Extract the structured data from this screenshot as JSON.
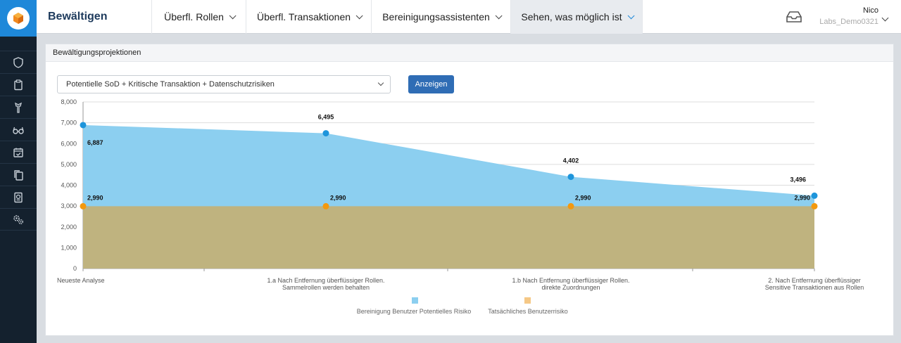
{
  "app": {
    "title": "Bewältigen"
  },
  "nav": {
    "tabs": [
      {
        "label": "Überfl. Rollen"
      },
      {
        "label": "Überfl. Transaktionen"
      },
      {
        "label": "Bereinigungsassistenten"
      },
      {
        "label": "Sehen, was möglich ist"
      }
    ]
  },
  "user": {
    "name": "Nico",
    "org": "Labs_Demo0321"
  },
  "sidebar": {
    "icons": [
      "shield-icon",
      "clipboard-icon",
      "hanger-icon",
      "glasses-icon",
      "calendar-check-icon",
      "copy-icon",
      "passport-icon",
      "gears-icon"
    ]
  },
  "colors": {
    "accent": "#1e88d9",
    "potential": "#8ccff0",
    "actual": "#bfb37f",
    "potential_dot": "#1e95db",
    "actual_dot": "#f3990f"
  },
  "panel": {
    "title": "Bewältigungsprojektionen",
    "select_value": "Potentielle SoD + Kritische Transaktion + Datenschutzrisiken",
    "button_label": "Anzeigen"
  },
  "chart_data": {
    "type": "area",
    "categories": [
      [
        "Neueste Analyse"
      ],
      [
        "1.a Nach Entfernung überflüssiger Rollen.",
        "Sammelrollen werden behalten"
      ],
      [
        "1.b Nach Entfernung überflüssiger Rollen.",
        "direkte Zuordnungen"
      ],
      [
        "2. Nach Entfernung überflüssiger",
        "Sensitive Transaktionen aus Rollen"
      ]
    ],
    "series": [
      {
        "name": "Bereinigung Benutzer Potentielles Risiko",
        "values": [
          6887,
          6495,
          4402,
          3496
        ],
        "labels": [
          "6,887",
          "6,495",
          "4,402",
          "3,496"
        ]
      },
      {
        "name": "Tatsächliches Benutzerrisiko",
        "values": [
          2990,
          2990,
          2990,
          2990
        ],
        "labels": [
          "2,990",
          "2,990",
          "2,990",
          "2,990"
        ]
      }
    ],
    "ylim": [
      0,
      8000
    ],
    "yticks": [
      "0",
      "1,000",
      "2,000",
      "3,000",
      "4,000",
      "5,000",
      "6,000",
      "7,000",
      "8,000"
    ],
    "grid": true,
    "legend": "bottom"
  }
}
